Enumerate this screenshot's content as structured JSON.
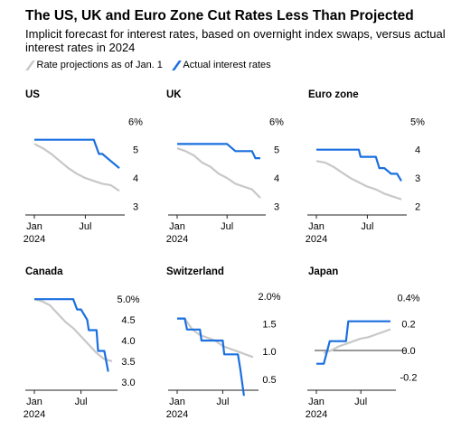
{
  "title": "The US, UK and Euro Zone Cut Rates Less Than Projected",
  "subtitle": "Implicit forecast for interest rates, based on overnight index swaps, versus actual interest rates in 2024",
  "legend": [
    {
      "label": "Rate projections as of Jan. 1",
      "color": "#c8c8c8"
    },
    {
      "label": "Actual interest rates",
      "color": "#1a6fe0"
    }
  ],
  "colors": {
    "projection": "#c8c8c8",
    "actual": "#1a6fe0",
    "axis": "#222222",
    "grid": "#dddddd"
  },
  "x_ticks": [
    {
      "x": 0,
      "label": "Jan",
      "sub": "2024"
    },
    {
      "x": 6,
      "label": "Jul",
      "sub": ""
    }
  ],
  "chart_data": [
    {
      "type": "line",
      "title": "US",
      "ylim": [
        2.7,
        6.2
      ],
      "yticks": [
        {
          "v": 6,
          "label": "6%"
        },
        {
          "v": 5,
          "label": "5"
        },
        {
          "v": 4,
          "label": "4"
        },
        {
          "v": 3,
          "label": "3"
        }
      ],
      "gridlines": [],
      "series": [
        {
          "name": "Rate projections as of Jan. 1",
          "x": [
            0,
            1,
            2,
            3,
            4,
            5,
            6,
            7,
            8,
            9,
            10
          ],
          "y": [
            5.2,
            5.05,
            4.85,
            4.6,
            4.35,
            4.15,
            4.0,
            3.9,
            3.8,
            3.75,
            3.55
          ]
        },
        {
          "name": "Actual interest rates",
          "x": [
            0,
            1,
            2,
            3,
            4,
            5,
            6,
            7,
            7.6,
            8,
            9,
            10
          ],
          "y": [
            5.35,
            5.35,
            5.35,
            5.35,
            5.35,
            5.35,
            5.35,
            5.35,
            4.85,
            4.85,
            4.6,
            4.35
          ]
        }
      ]
    },
    {
      "type": "line",
      "title": "UK",
      "ylim": [
        2.7,
        6.2
      ],
      "yticks": [
        {
          "v": 6,
          "label": "6%"
        },
        {
          "v": 5,
          "label": "5"
        },
        {
          "v": 4,
          "label": "4"
        },
        {
          "v": 3,
          "label": "3"
        }
      ],
      "gridlines": [],
      "series": [
        {
          "name": "Rate projections as of Jan. 1",
          "x": [
            0,
            1,
            2,
            3,
            4,
            5,
            6,
            7,
            8,
            9,
            10
          ],
          "y": [
            5.05,
            4.95,
            4.8,
            4.55,
            4.4,
            4.15,
            4.0,
            3.8,
            3.7,
            3.6,
            3.3
          ]
        },
        {
          "name": "Actual interest rates",
          "x": [
            0,
            1,
            2,
            3,
            4,
            5,
            6,
            7,
            7.4,
            8,
            9,
            9.4,
            10
          ],
          "y": [
            5.2,
            5.2,
            5.2,
            5.2,
            5.2,
            5.2,
            5.2,
            4.95,
            4.95,
            4.95,
            4.95,
            4.7,
            4.7
          ]
        }
      ]
    },
    {
      "type": "line",
      "title": "Euro zone",
      "ylim": [
        1.7,
        5.2
      ],
      "yticks": [
        {
          "v": 5,
          "label": "5%"
        },
        {
          "v": 4,
          "label": "4"
        },
        {
          "v": 3,
          "label": "3"
        },
        {
          "v": 2,
          "label": "2"
        }
      ],
      "gridlines": [],
      "series": [
        {
          "name": "Rate projections as of Jan. 1",
          "x": [
            0,
            1,
            2,
            3,
            4,
            5,
            6,
            7,
            8,
            9,
            10
          ],
          "y": [
            3.6,
            3.55,
            3.4,
            3.2,
            3.0,
            2.85,
            2.7,
            2.6,
            2.45,
            2.35,
            2.25
          ]
        },
        {
          "name": "Actual interest rates",
          "x": [
            0,
            1,
            2,
            3,
            4,
            5,
            5.2,
            6,
            7,
            7.4,
            8,
            8.8,
            9.5,
            10
          ],
          "y": [
            4.0,
            4.0,
            4.0,
            4.0,
            4.0,
            4.0,
            3.75,
            3.75,
            3.75,
            3.35,
            3.35,
            3.15,
            3.15,
            2.9
          ]
        }
      ]
    },
    {
      "type": "line",
      "title": "Canada",
      "ylim": [
        2.8,
        5.2
      ],
      "yticks": [
        {
          "v": 5,
          "label": "5.0%"
        },
        {
          "v": 4.5,
          "label": "4.5"
        },
        {
          "v": 4,
          "label": "4.0"
        },
        {
          "v": 3.5,
          "label": "3.5"
        },
        {
          "v": 3,
          "label": "3.0"
        }
      ],
      "gridlines": [],
      "series": [
        {
          "name": "Rate projections as of Jan. 1",
          "x": [
            0,
            1,
            2,
            3,
            4,
            5,
            6,
            7,
            8,
            9,
            10
          ],
          "y": [
            5.0,
            4.95,
            4.85,
            4.65,
            4.45,
            4.3,
            4.1,
            3.9,
            3.7,
            3.55,
            3.5
          ]
        },
        {
          "name": "Actual interest rates",
          "x": [
            0,
            1,
            2,
            3,
            4,
            5,
            5.5,
            6,
            6.8,
            7,
            8,
            8.2,
            9,
            9.5
          ],
          "y": [
            5.0,
            5.0,
            5.0,
            5.0,
            5.0,
            5.0,
            4.75,
            4.75,
            4.5,
            4.25,
            4.25,
            3.75,
            3.75,
            3.25
          ]
        }
      ]
    },
    {
      "type": "line",
      "title": "Switzerland",
      "ylim": [
        0.3,
        2.1
      ],
      "yticks": [
        {
          "v": 2.0,
          "label": "2.0%"
        },
        {
          "v": 1.5,
          "label": "1.5"
        },
        {
          "v": 1.0,
          "label": "1.0"
        },
        {
          "v": 0.5,
          "label": "0.5"
        }
      ],
      "gridlines": [],
      "series": [
        {
          "name": "Rate projections as of Jan. 1",
          "x": [
            0,
            1,
            2,
            3,
            4,
            5,
            6,
            7,
            8,
            9,
            10
          ],
          "y": [
            1.6,
            1.6,
            1.4,
            1.3,
            1.25,
            1.2,
            1.1,
            1.05,
            1.0,
            0.95,
            0.9
          ]
        },
        {
          "name": "Actual interest rates",
          "x": [
            0,
            1,
            1.3,
            3,
            3.2,
            4,
            5,
            6,
            6.2,
            7,
            8,
            8.3,
            8.8
          ],
          "y": [
            1.6,
            1.6,
            1.4,
            1.4,
            1.2,
            1.2,
            1.2,
            1.2,
            0.95,
            0.95,
            0.95,
            0.7,
            0.2
          ]
        }
      ]
    },
    {
      "type": "line",
      "title": "Japan",
      "ylim": [
        -0.3,
        0.45
      ],
      "yticks": [
        {
          "v": 0.4,
          "label": "0.4%"
        },
        {
          "v": 0.2,
          "label": "0.2"
        },
        {
          "v": 0.0,
          "label": "0.0"
        },
        {
          "v": -0.2,
          "label": "-0.2"
        }
      ],
      "gridlines": [
        0.0
      ],
      "series": [
        {
          "name": "Rate projections as of Jan. 1",
          "x": [
            1,
            2,
            3,
            4,
            5,
            6,
            7,
            8,
            9,
            10
          ],
          "y": [
            -0.02,
            0.0,
            0.03,
            0.05,
            0.07,
            0.09,
            0.1,
            0.12,
            0.14,
            0.16
          ]
        },
        {
          "name": "Actual interest rates",
          "x": [
            0,
            1,
            1.8,
            3,
            4,
            4.3,
            5,
            6,
            7,
            8,
            9,
            10
          ],
          "y": [
            -0.1,
            -0.1,
            0.07,
            0.07,
            0.07,
            0.22,
            0.22,
            0.22,
            0.22,
            0.22,
            0.22,
            0.22
          ]
        }
      ]
    }
  ]
}
